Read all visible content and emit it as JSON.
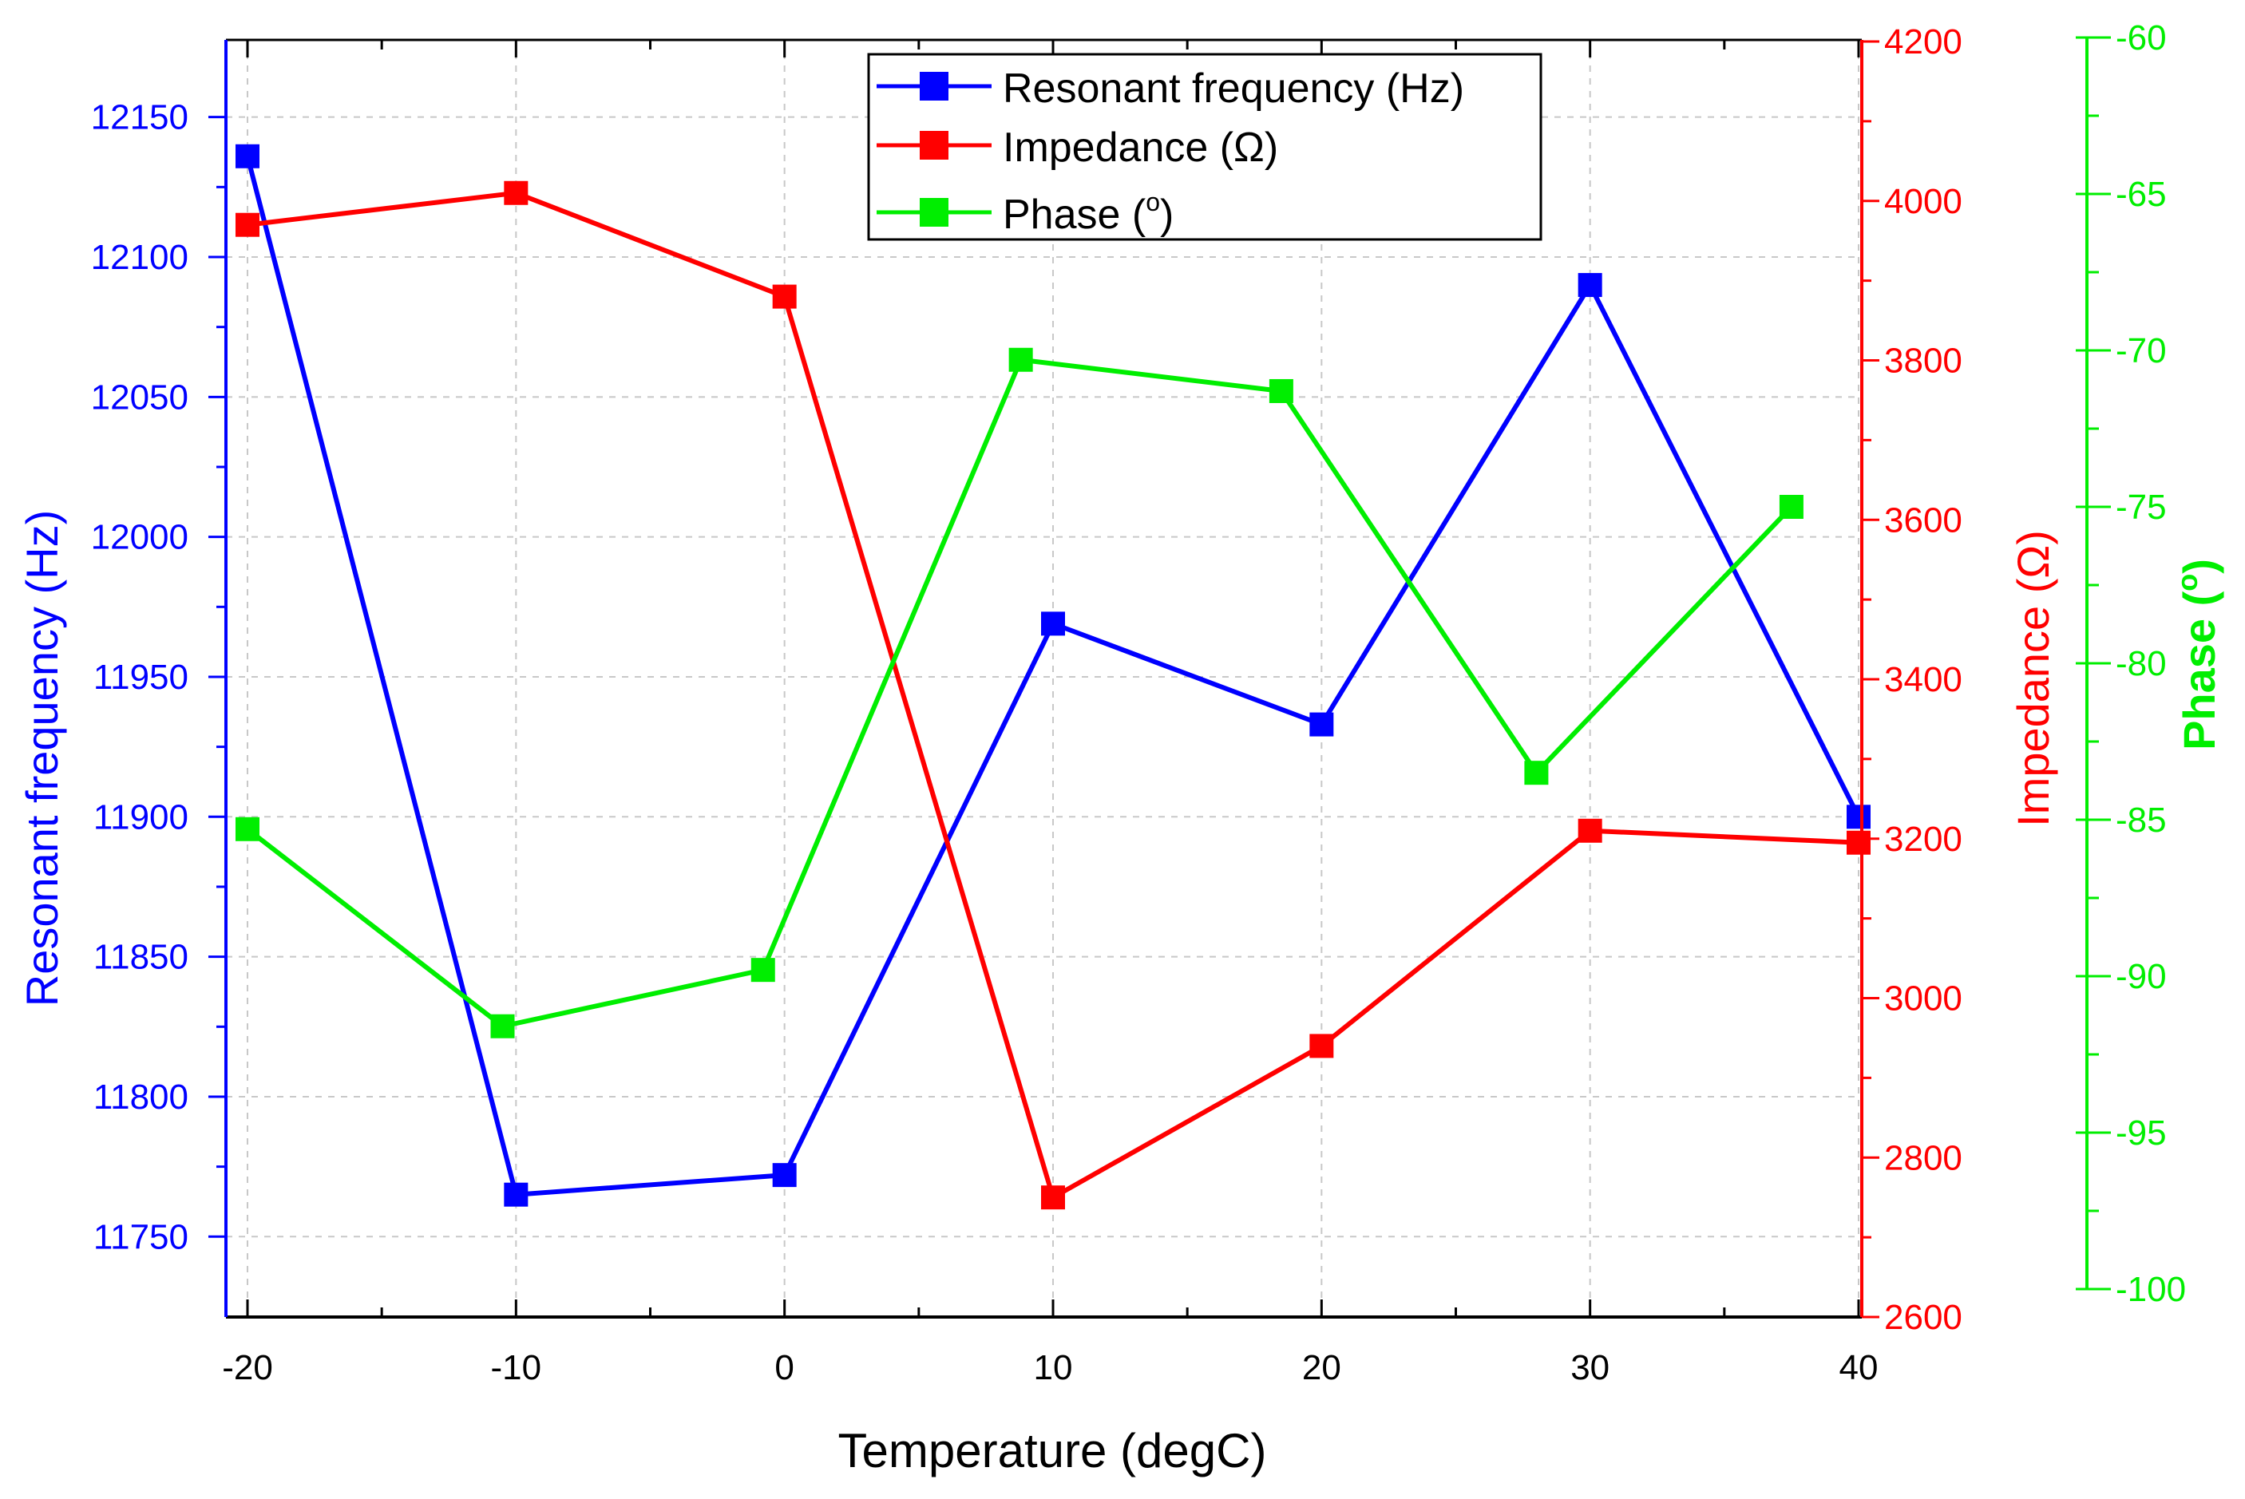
{
  "chart_data": {
    "type": "line",
    "title": "",
    "xlabel": "Temperature (degC)",
    "xlim": [
      -21,
      40.5
    ],
    "xticks": [
      -20,
      -10,
      0,
      10,
      20,
      30,
      40
    ],
    "grid": true,
    "legend_position": "top-center",
    "axes": [
      {
        "id": "freq",
        "side": "left",
        "label": "Resonant frequency (Hz)",
        "color": "#0000ff",
        "lim": [
          11717,
          12177
        ],
        "ticks": [
          11750,
          11800,
          11850,
          11900,
          11950,
          12000,
          12050,
          12100,
          12150
        ]
      },
      {
        "id": "imp",
        "side": "right",
        "label": "Impedance (Ω)",
        "color": "#ff0000",
        "lim": [
          2600,
          4200
        ],
        "ticks": [
          2600,
          2800,
          3000,
          3200,
          3400,
          3600,
          3800,
          4000,
          4200
        ]
      },
      {
        "id": "phase",
        "side": "right-outer",
        "label_main": "Phase (",
        "label_sup": "o",
        "label_end": ")",
        "color": "#00ee00",
        "lim": [
          -100,
          -60
        ],
        "ticks": [
          -100,
          -95,
          -90,
          -85,
          -80,
          -75,
          -70,
          -65,
          -60
        ]
      }
    ],
    "series": [
      {
        "name": "Resonant frequency (Hz)",
        "axis": "freq",
        "color": "#0000ff",
        "x": [
          -20,
          -10,
          0,
          10,
          20,
          30,
          40
        ],
        "values": [
          12136,
          11765,
          11772,
          11969,
          11933,
          12090,
          11900
        ]
      },
      {
        "name": "Impedance (Ω)",
        "axis": "imp",
        "color": "#ff0000",
        "x": [
          -20,
          -10,
          0,
          10,
          20,
          30,
          40
        ],
        "values": [
          3970,
          4010,
          3880,
          2750,
          2940,
          3210,
          3195
        ]
      },
      {
        "name": "Phase (o)",
        "axis": "phase",
        "color": "#00ee00",
        "x": [
          -20,
          -10.5,
          -0.8,
          8.8,
          18.5,
          28,
          37.5
        ],
        "values": [
          -85.3,
          -91.6,
          -89.8,
          -70.3,
          -71.3,
          -83.5,
          -75
        ]
      }
    ],
    "legend": {
      "entries": [
        {
          "main": "Resonant frequency (Hz)",
          "sup": "",
          "end": ""
        },
        {
          "main": "Impedance (Ω)",
          "sup": "",
          "end": ""
        },
        {
          "main": "Phase (",
          "sup": "o",
          "end": ")"
        }
      ]
    }
  }
}
